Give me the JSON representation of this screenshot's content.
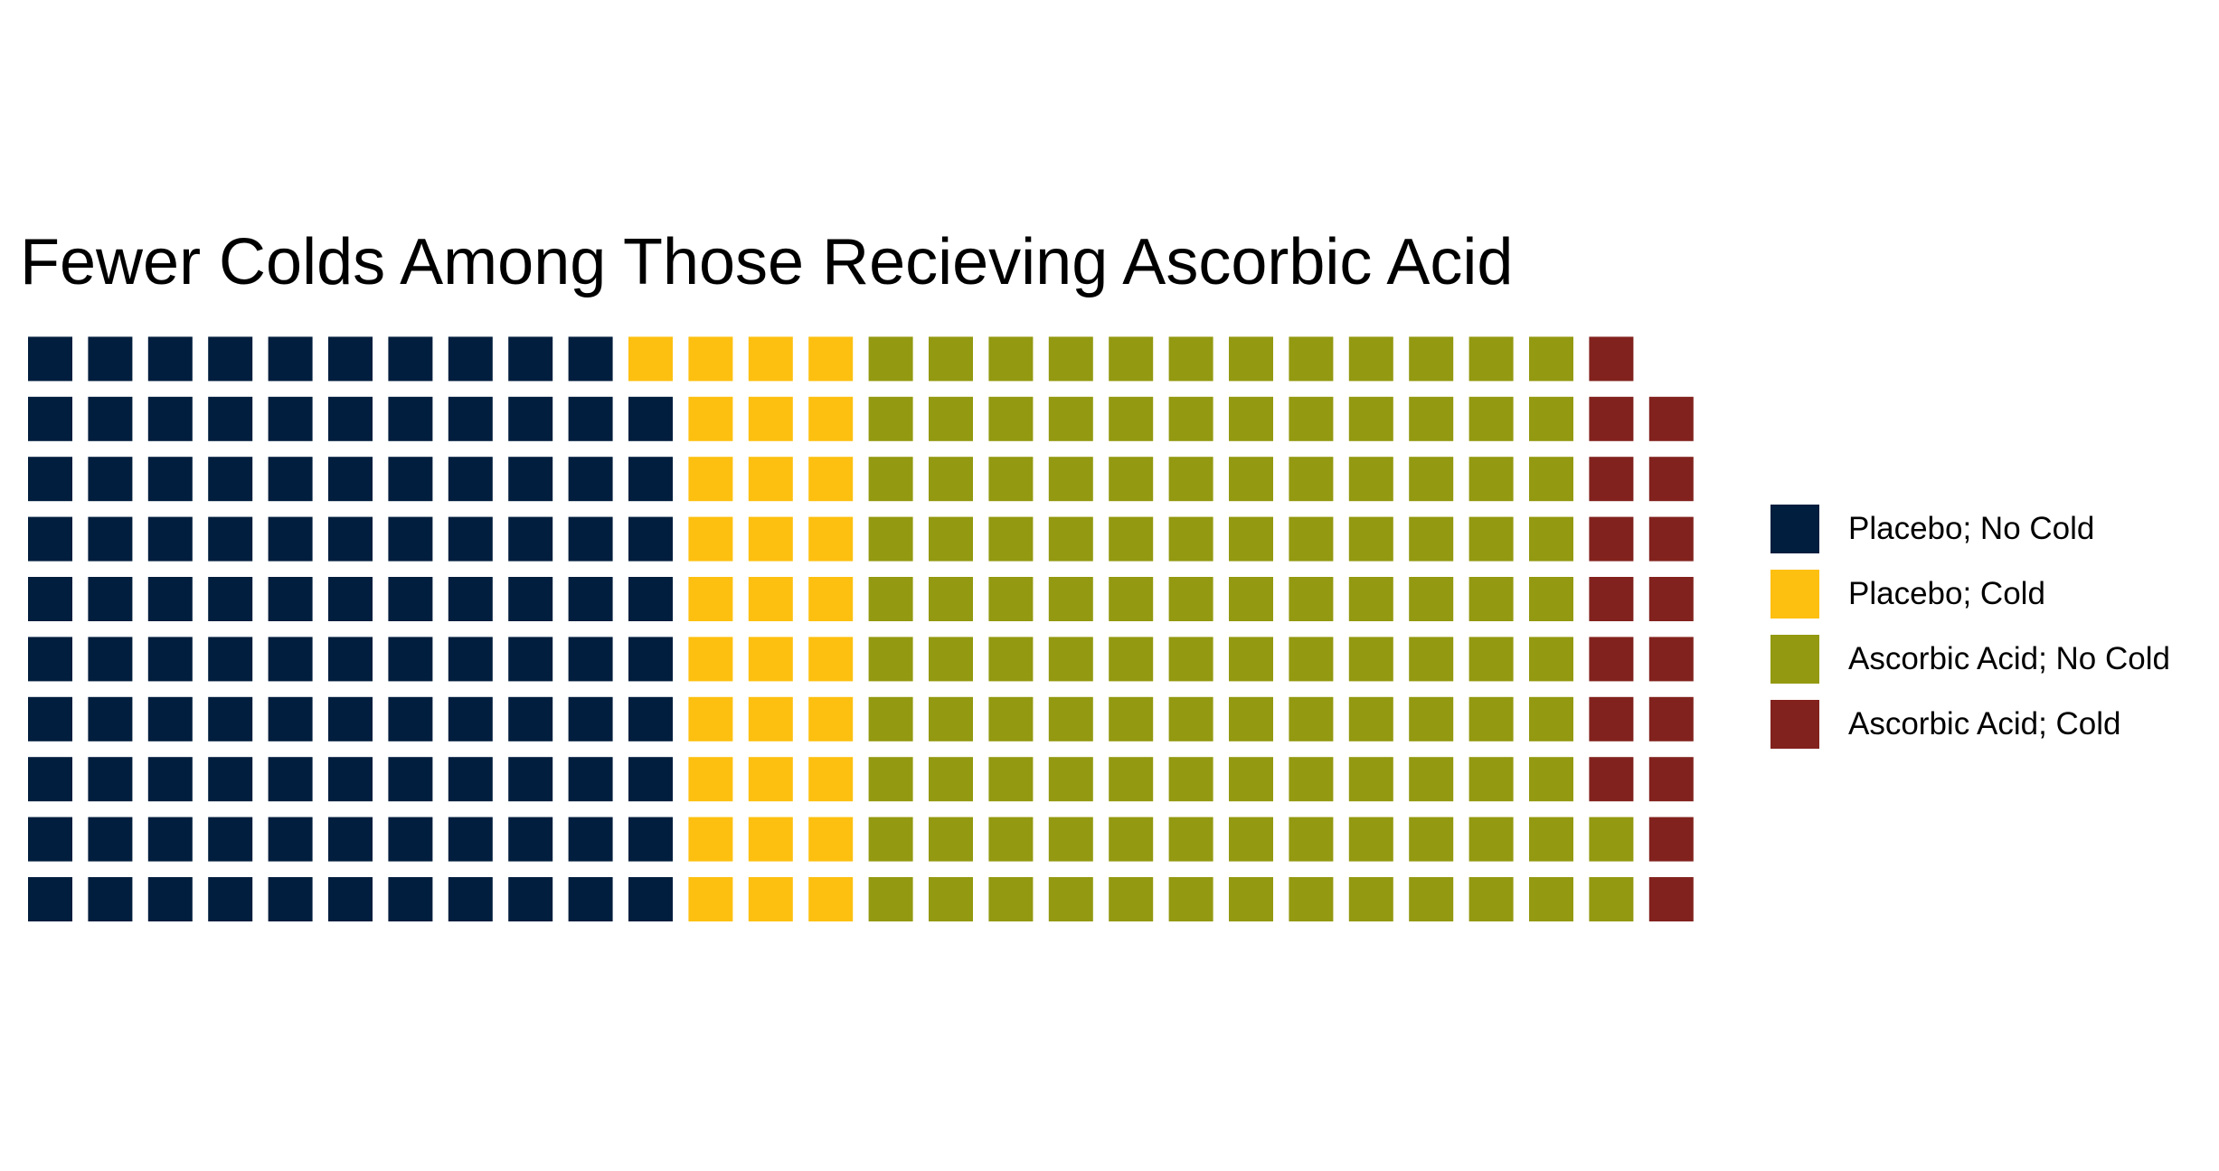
{
  "chart_data": {
    "type": "waffle",
    "title": "Fewer Colds Among Those Recieving Ascorbic Acid",
    "rows": 10,
    "series": [
      {
        "name": "Placebo; No Cold",
        "value": 109,
        "color": "#021E3E"
      },
      {
        "name": "Placebo; Cold",
        "value": 31,
        "color": "#FDC010"
      },
      {
        "name": "Ascorbic Acid; No Cold",
        "value": 122,
        "color": "#939910"
      },
      {
        "name": "Ascorbic Acid; Cold",
        "value": 17,
        "color": "#82221E"
      }
    ],
    "legend_position": "right",
    "grid": false
  }
}
